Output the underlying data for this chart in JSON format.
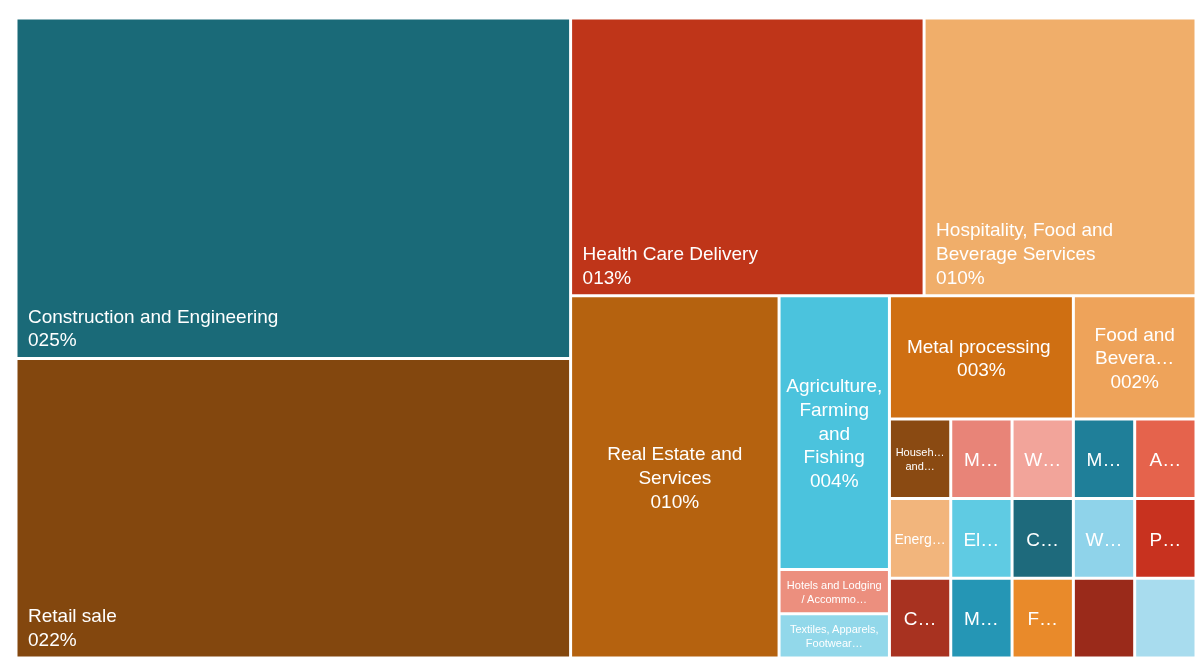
{
  "chart_data": {
    "type": "other",
    "categories": [
      "Construction and Engineering",
      "Retail sale",
      "Health Care Delivery",
      "Hospitality, Food and Beverage Services ",
      "Real Estate and Services",
      "Agriculture, Farming and Fishing",
      "Hotels and Lodging / Accommo…",
      "Textiles, Apparels, Footwear…",
      "Metal processing ",
      "Food and Bevera…",
      "Househ… and…",
      "Energ…",
      "C…",
      "M…",
      "El…",
      "M…",
      "W…",
      "M…",
      "A…",
      "C…",
      "F…",
      "W…",
      "P…",
      null,
      null
    ],
    "values": [
      25,
      22,
      13,
      10,
      10,
      4,
      null,
      null,
      3,
      2,
      null,
      null,
      null,
      null,
      null,
      null,
      null,
      null,
      null,
      null,
      null,
      null,
      null,
      null,
      null
    ],
    "value_labels": [
      "025%",
      "022%",
      "013%",
      "010%",
      "010%",
      "004%",
      null,
      null,
      "003%",
      "002%",
      null,
      null,
      null,
      null,
      null,
      null,
      null,
      null,
      null,
      null,
      null,
      null,
      null,
      null,
      null
    ],
    "colors": [
      "#1a6a78",
      "#83470e",
      "#bf3519",
      "#f0ae6a",
      "#b5620f",
      "#4bc3dd",
      "#ec8f7e",
      "#92d8ea",
      "#cf6f12",
      "#eea35a",
      "#8a4a12",
      "#f2b57c",
      "#a83220",
      "#e88478",
      "#5fcbe3",
      "#2596b5",
      "#f2a49a",
      "#1f7f99",
      "#e5634c",
      "#1e6a7c",
      "#e98a2a",
      "#8fd3ea",
      "#c8321f",
      "#9a2a1a",
      "#a8dcee"
    ]
  }
}
